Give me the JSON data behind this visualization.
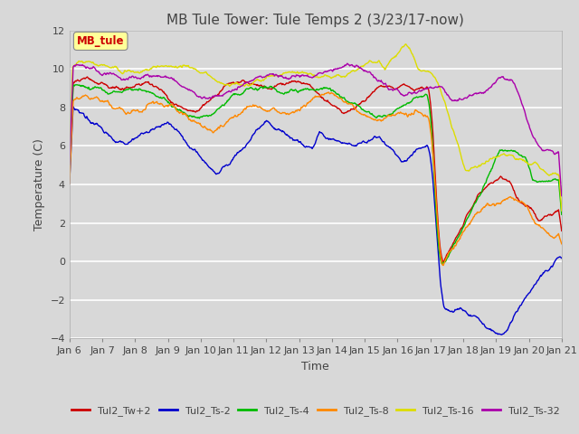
{
  "title": "MB Tule Tower: Tule Temps 2 (3/23/17-now)",
  "xlabel": "Time",
  "ylabel": "Temperature (C)",
  "ylim": [
    -4,
    12
  ],
  "yticks": [
    -4,
    -2,
    0,
    2,
    4,
    6,
    8,
    10,
    12
  ],
  "x_labels": [
    "Jan 6",
    "Jan 7",
    "Jan 8",
    "Jan 9",
    "Jan 10",
    "Jan 11",
    "Jan 12",
    "Jan 13",
    "Jan 14",
    "Jan 15",
    "Jan 16",
    "Jan 17",
    "Jan 18",
    "Jan 19",
    "Jan 20",
    "Jan 21"
  ],
  "legend_label": "MB_tule",
  "series_colors": {
    "Tul2_Tw+2": "#cc0000",
    "Tul2_Ts-2": "#0000cc",
    "Tul2_Ts-4": "#00bb00",
    "Tul2_Ts-8": "#ff8800",
    "Tul2_Ts-16": "#dddd00",
    "Tul2_Ts-32": "#aa00aa"
  },
  "background_color": "#d8d8d8",
  "plot_bg_color": "#d8d8d8",
  "grid_color": "#ffffff",
  "title_fontsize": 11,
  "axis_fontsize": 9,
  "tick_fontsize": 8,
  "figsize": [
    6.4,
    4.8
  ],
  "dpi": 100
}
